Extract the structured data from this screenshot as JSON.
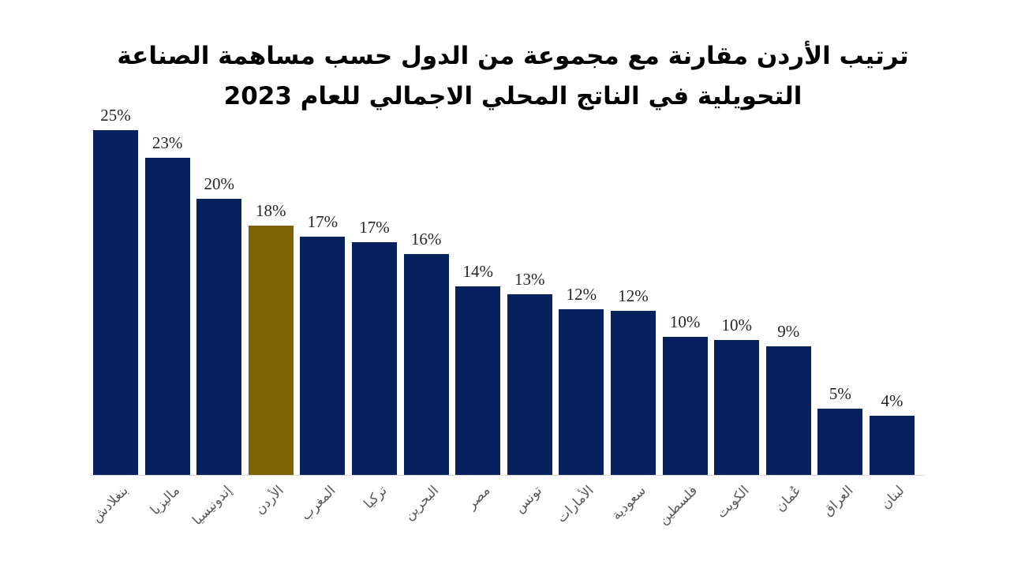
{
  "title": {
    "line1": "ترتيب الأردن مقارنة مع مجموعة من الدول حسب مساهمة الصناعة",
    "line2": "التحويلية في الناتج المحلي الاجمالي للعام 2023"
  },
  "chart_data": {
    "type": "bar",
    "title": "ترتيب الأردن مقارنة مع مجموعة من الدول حسب مساهمة الصناعة التحويلية في الناتج المحلي الاجمالي للعام 2023",
    "unit": "%",
    "categories": [
      "بنغلادش",
      "ماليزيا",
      "إندونيسيا",
      "الأردن",
      "المغرب",
      "تركيا",
      "البحرين",
      "مصر",
      "تونس",
      "الأمارات",
      "سعودية",
      "فلسطين",
      "الكويت",
      "عُمان",
      "العراق",
      "لبنان"
    ],
    "values": [
      25,
      23,
      20,
      18,
      17,
      17,
      16,
      14,
      13,
      12,
      12,
      10,
      10,
      9,
      5,
      4
    ],
    "value_labels": [
      "25%",
      "23%",
      "20%",
      "18%",
      "17%",
      "17%",
      "16%",
      "14%",
      "13%",
      "12%",
      "12%",
      "10%",
      "10%",
      "9%",
      "5%",
      "4%"
    ],
    "display_heights_pct": [
      25,
      23,
      20,
      18.1,
      17.3,
      16.9,
      16,
      13.7,
      13.1,
      12,
      11.9,
      10,
      9.8,
      9.3,
      4.8,
      4.3
    ],
    "highlight_index": 3,
    "highlight_category": "الأردن",
    "colors": {
      "bar": "#07215f",
      "highlight": "#7d6303",
      "value_label": "#262626",
      "category_label": "#595959",
      "axis_line": "#d9d9d9",
      "background": "#ffffff",
      "title": "#000000"
    },
    "ylim": [
      0,
      27
    ],
    "grid": false,
    "legend": "none",
    "xlabel": "",
    "ylabel": ""
  }
}
